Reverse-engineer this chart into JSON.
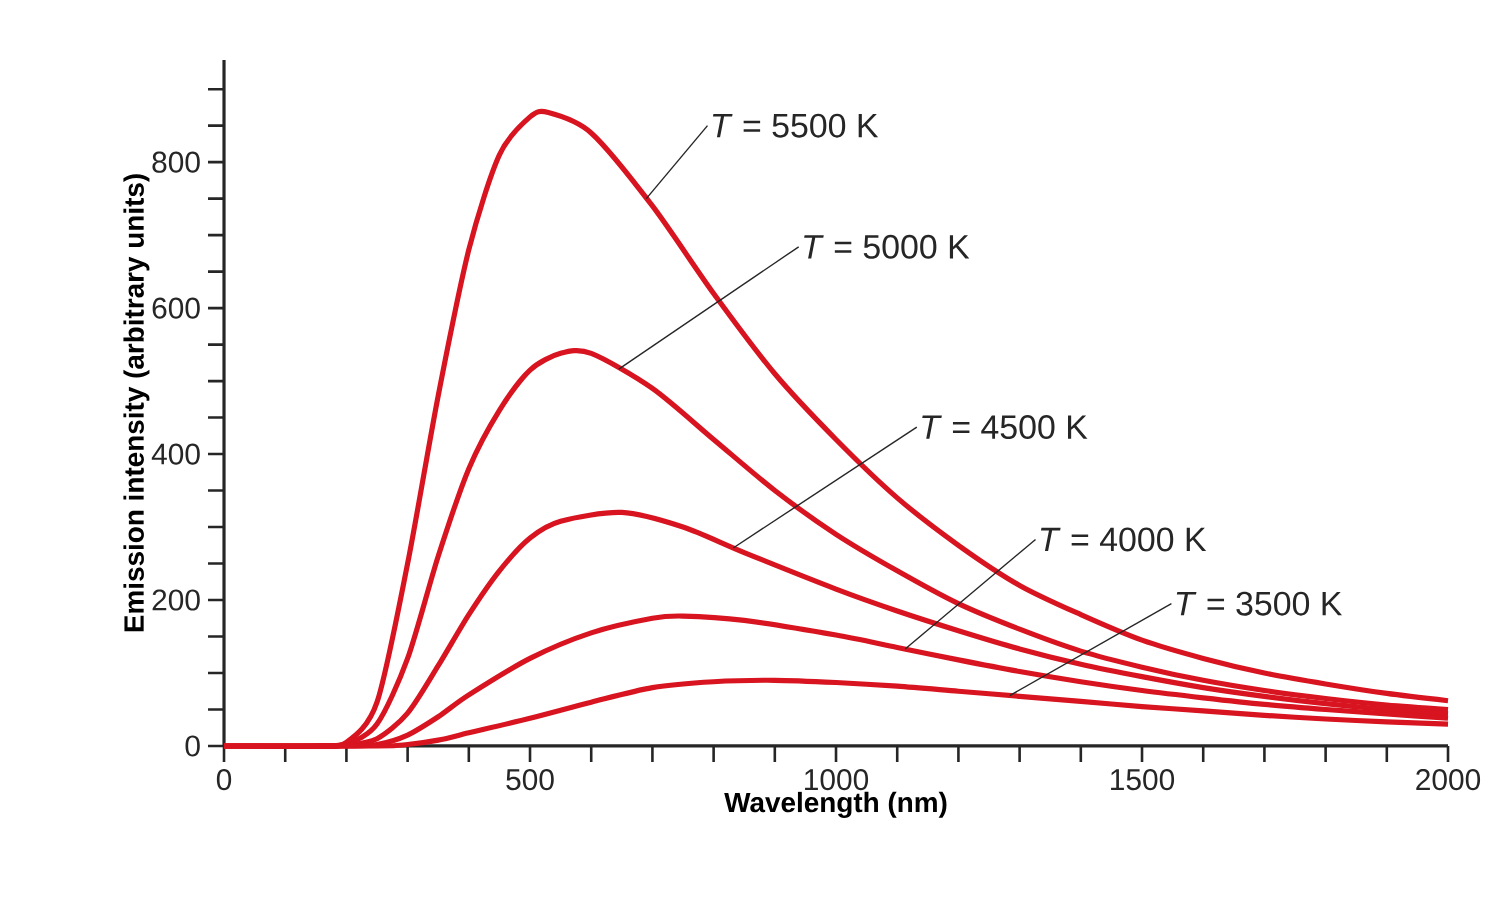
{
  "chart_data": {
    "type": "line",
    "xlabel": "Wavelength (nm)",
    "ylabel": "Emission intensity (arbitrary units)",
    "xlim": [
      0,
      2000
    ],
    "ylim": [
      0,
      940
    ],
    "xticks": [
      0,
      {
        "value": 100,
        "label": null
      },
      {
        "value": 200,
        "label": null
      },
      {
        "value": 300,
        "label": null
      },
      {
        "value": 400,
        "label": null
      },
      500,
      {
        "value": 600,
        "label": null
      },
      {
        "value": 700,
        "label": null
      },
      {
        "value": 800,
        "label": null
      },
      {
        "value": 900,
        "label": null
      },
      1000,
      {
        "value": 1100,
        "label": null
      },
      {
        "value": 1200,
        "label": null
      },
      {
        "value": 1300,
        "label": null
      },
      {
        "value": 1400,
        "label": null
      },
      1500,
      {
        "value": 1600,
        "label": null
      },
      {
        "value": 1700,
        "label": null
      },
      {
        "value": 1800,
        "label": null
      },
      {
        "value": 1900,
        "label": null
      },
      2000
    ],
    "yticks": [
      0,
      {
        "value": 50,
        "label": null
      },
      {
        "value": 100,
        "label": null
      },
      {
        "value": 150,
        "label": null
      },
      200,
      {
        "value": 250,
        "label": null
      },
      {
        "value": 300,
        "label": null
      },
      {
        "value": 350,
        "label": null
      },
      400,
      {
        "value": 450,
        "label": null
      },
      {
        "value": 500,
        "label": null
      },
      {
        "value": 550,
        "label": null
      },
      600,
      {
        "value": 650,
        "label": null
      },
      {
        "value": 700,
        "label": null
      },
      {
        "value": 750,
        "label": null
      },
      800,
      {
        "value": 850,
        "label": null
      },
      {
        "value": 900,
        "label": null
      }
    ],
    "grid": false,
    "legend": false,
    "marker": "none",
    "line_style": "solid",
    "series": [
      {
        "name": "*T* = 5500 K",
        "color": "#d7141f",
        "x": [
          0,
          150,
          200,
          250,
          300,
          350,
          400,
          450,
          500,
          530,
          600,
          700,
          800,
          900,
          1000,
          1100,
          1200,
          1300,
          1400,
          1500,
          1600,
          1700,
          1800,
          1900,
          2000
        ],
        "values": [
          0,
          0,
          5,
          60,
          250,
          480,
          680,
          810,
          862,
          868,
          840,
          740,
          620,
          510,
          420,
          340,
          275,
          220,
          180,
          145,
          120,
          100,
          85,
          72,
          62
        ]
      },
      {
        "name": "*T* = 5000 K",
        "color": "#d7141f",
        "x": [
          0,
          150,
          200,
          250,
          300,
          350,
          400,
          450,
          500,
          550,
          600,
          700,
          800,
          900,
          1000,
          1100,
          1200,
          1300,
          1400,
          1500,
          1600,
          1700,
          1800,
          1900,
          2000
        ],
        "values": [
          0,
          0,
          3,
          30,
          120,
          260,
          380,
          460,
          515,
          538,
          538,
          490,
          420,
          350,
          290,
          240,
          195,
          160,
          130,
          108,
          90,
          76,
          65,
          56,
          50
        ]
      },
      {
        "name": "*T* = 4500 K",
        "color": "#d7141f",
        "x": [
          0,
          150,
          200,
          250,
          300,
          350,
          400,
          450,
          500,
          550,
          650,
          750,
          850,
          1000,
          1100,
          1200,
          1300,
          1400,
          1500,
          1600,
          1700,
          1800,
          1900,
          2000
        ],
        "values": [
          0,
          0,
          1,
          10,
          45,
          110,
          180,
          240,
          285,
          308,
          320,
          300,
          265,
          215,
          185,
          158,
          133,
          112,
          95,
          80,
          68,
          58,
          50,
          44
        ]
      },
      {
        "name": "*T* = 4000 K",
        "color": "#d7141f",
        "x": [
          0,
          200,
          250,
          300,
          350,
          400,
          500,
          600,
          700,
          750,
          850,
          1000,
          1100,
          1200,
          1300,
          1400,
          1500,
          1600,
          1700,
          1800,
          1900,
          2000
        ],
        "values": [
          0,
          0,
          2,
          15,
          40,
          70,
          120,
          155,
          175,
          178,
          172,
          152,
          135,
          118,
          102,
          88,
          76,
          66,
          57,
          50,
          44,
          38
        ]
      },
      {
        "name": "*T* = 3500 K",
        "color": "#d7141f",
        "x": [
          0,
          250,
          300,
          350,
          400,
          500,
          600,
          700,
          800,
          900,
          1000,
          1100,
          1200,
          1300,
          1400,
          1500,
          1600,
          1700,
          1800,
          1900,
          2000
        ],
        "values": [
          0,
          0,
          2,
          8,
          18,
          38,
          60,
          80,
          88,
          90,
          87,
          82,
          75,
          68,
          61,
          54,
          48,
          42,
          37,
          33,
          30
        ]
      }
    ]
  }
}
